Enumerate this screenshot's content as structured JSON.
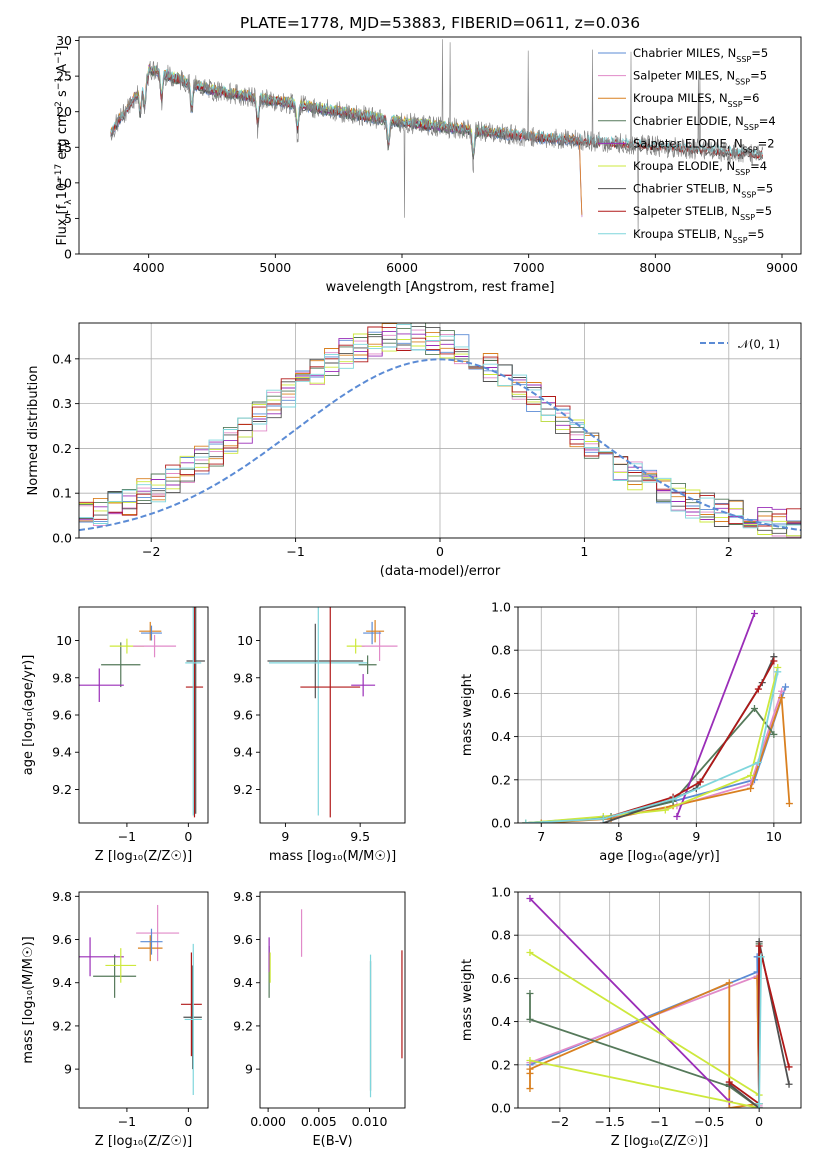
{
  "chart_data": [
    {
      "id": "spectrum",
      "type": "line",
      "title": "PLATE=1778, MJD=53883, FIBERID=0611, z=0.036",
      "xlabel": "wavelength [Angstrom, rest frame]",
      "ylabel_parts": [
        "Flux [f",
        "λ",
        "10",
        "−17",
        " erg cm",
        "−2",
        " s",
        "−1",
        " A",
        "−1",
        "]"
      ],
      "xlim": [
        3450,
        9150
      ],
      "ylim": [
        0,
        30.5
      ],
      "xticks": [
        4000,
        5000,
        6000,
        7000,
        8000,
        9000
      ],
      "yticks": [
        0,
        5,
        10,
        15,
        20,
        25,
        30
      ],
      "legend_placement": "upper right",
      "series": [
        {
          "name": "Chabrier MILES, N",
          "sub": "SSP",
          "suffix": "=5",
          "color": "#5b8bd5",
          "x_range": [
            3700,
            7420
          ]
        },
        {
          "name": "Salpeter MILES, N",
          "sub": "SSP",
          "suffix": "=5",
          "color": "#e18ac8",
          "x_range": [
            3700,
            7420
          ]
        },
        {
          "name": "Kroupa MILES, N",
          "sub": "SSP",
          "suffix": "=6",
          "color": "#d98020",
          "x_range": [
            3700,
            7420
          ]
        },
        {
          "name": "Chabrier ELODIE, N",
          "sub": "SSP",
          "suffix": "=4",
          "color": "#55795a",
          "x_range": [
            3900,
            6800
          ]
        },
        {
          "name": "Salpeter ELODIE, N",
          "sub": "SSP",
          "suffix": "=2",
          "color": "#9a2db8",
          "x_range": [
            3900,
            6800
          ]
        },
        {
          "name": "Kroupa ELODIE, N",
          "sub": "SSP",
          "suffix": "=4",
          "color": "#cde83c",
          "x_range": [
            3900,
            6800
          ]
        },
        {
          "name": "Chabrier STELIB, N",
          "sub": "SSP",
          "suffix": "=5",
          "color": "#505050",
          "x_range": [
            3700,
            8850
          ]
        },
        {
          "name": "Salpeter STELIB, N",
          "sub": "SSP",
          "suffix": "=5",
          "color": "#b01818",
          "x_range": [
            3700,
            8850
          ]
        },
        {
          "name": "Kroupa STELIB, N",
          "sub": "SSP",
          "suffix": "=5",
          "color": "#7fd6dc",
          "x_range": [
            3700,
            8850
          ]
        }
      ],
      "data_line": {
        "color": "#808080"
      }
    },
    {
      "id": "residuals",
      "type": "step",
      "xlabel": "(data-model)/error",
      "ylabel": "Normed distribution",
      "xlim": [
        -2.5,
        2.5
      ],
      "ylim": [
        0,
        0.48
      ],
      "xticks": [
        -2,
        -1,
        0,
        1,
        2
      ],
      "yticks": [
        0.0,
        0.1,
        0.2,
        0.3,
        0.4
      ],
      "grid": true,
      "legend": {
        "label": "𝒩(0, 1)",
        "color": "#5b8bd5",
        "placement": "upper right"
      },
      "bins": {
        "start": -2.5,
        "width": 0.1,
        "count": 50
      }
    },
    {
      "id": "age-vs-Z",
      "type": "errorbar",
      "xlabel": "Z [log₁₀(Z/Z☉)]",
      "ylabel": "age  [log₁₀(age/yr)]",
      "xlim": [
        -1.78,
        0.32
      ],
      "ylim": [
        9.02,
        10.18
      ],
      "xticks": [
        -1,
        0
      ],
      "yticks": [
        9.2,
        9.4,
        9.6,
        9.8,
        10.0
      ],
      "points": [
        {
          "x": -1.1,
          "y": 9.87,
          "xerr": 0.32,
          "yerr": 0.12,
          "color": "#55795a"
        },
        {
          "x": -1.45,
          "y": 9.76,
          "xerr": 0.4,
          "yerr": 0.09,
          "color": "#9a2db8"
        },
        {
          "x": -1.0,
          "y": 9.97,
          "xerr": 0.28,
          "yerr": 0.04,
          "color": "#cde83c"
        },
        {
          "x": -0.55,
          "y": 9.97,
          "xerr": 0.35,
          "yerr": 0.06,
          "color": "#e18ac8"
        },
        {
          "x": -0.62,
          "y": 10.05,
          "xerr": 0.18,
          "yerr": 0.05,
          "color": "#d98020"
        },
        {
          "x": -0.6,
          "y": 10.04,
          "xerr": 0.17,
          "yerr": 0.04,
          "color": "#5b8bd5"
        },
        {
          "x": 0.12,
          "y": 9.89,
          "xerr": 0.15,
          "yerr": 0.82,
          "color": "#505050"
        },
        {
          "x": 0.1,
          "y": 9.75,
          "xerr": 0.14,
          "yerr": 0.7,
          "color": "#b01818"
        },
        {
          "x": 0.08,
          "y": 9.88,
          "xerr": 0.13,
          "yerr": 0.82,
          "color": "#7fd6dc"
        }
      ]
    },
    {
      "id": "age-vs-mass",
      "type": "errorbar",
      "xlabel": "mass [log₁₀(M/M☉)]",
      "ylabel": "",
      "xlim": [
        8.83,
        9.8
      ],
      "ylim": [
        9.02,
        10.18
      ],
      "xticks": [
        9.0,
        9.5
      ],
      "yticks": [
        9.2,
        9.4,
        9.6,
        9.8,
        10.0
      ],
      "points": [
        {
          "x": 9.2,
          "y": 9.89,
          "xerr": 0.32,
          "yerr": 0.2,
          "color": "#505050"
        },
        {
          "x": 9.22,
          "y": 9.88,
          "xerr": 0.33,
          "yerr": 0.82,
          "color": "#7fd6dc"
        },
        {
          "x": 9.3,
          "y": 9.75,
          "xerr": 0.2,
          "yerr": 0.7,
          "color": "#b01818"
        },
        {
          "x": 9.52,
          "y": 9.76,
          "xerr": 0.08,
          "yerr": 0.06,
          "color": "#9a2db8"
        },
        {
          "x": 9.47,
          "y": 9.97,
          "xerr": 0.06,
          "yerr": 0.04,
          "color": "#cde83c"
        },
        {
          "x": 9.63,
          "y": 9.97,
          "xerr": 0.12,
          "yerr": 0.08,
          "color": "#e18ac8"
        },
        {
          "x": 9.58,
          "y": 10.04,
          "xerr": 0.06,
          "yerr": 0.06,
          "color": "#5b8bd5"
        },
        {
          "x": 9.6,
          "y": 10.05,
          "xerr": 0.06,
          "yerr": 0.06,
          "color": "#d98020"
        },
        {
          "x": 9.55,
          "y": 9.87,
          "xerr": 0.06,
          "yerr": 0.05,
          "color": "#55795a"
        }
      ]
    },
    {
      "id": "mass-weight-vs-age",
      "type": "line",
      "xlabel": "age  [log₁₀(age/yr)]",
      "ylabel": "mass weight",
      "xlim": [
        6.7,
        10.35
      ],
      "ylim": [
        0,
        1.0
      ],
      "xticks": [
        7,
        8,
        9,
        10
      ],
      "yticks": [
        0.0,
        0.2,
        0.4,
        0.6,
        0.8,
        1.0
      ],
      "grid": true,
      "series": [
        {
          "color": "#5b8bd5",
          "x": [
            6.8,
            7.8,
            8.7,
            9.75,
            10.15
          ],
          "y": [
            0.0,
            0.02,
            0.1,
            0.2,
            0.63
          ]
        },
        {
          "color": "#e18ac8",
          "x": [
            6.8,
            7.8,
            8.75,
            9.7,
            10.1
          ],
          "y": [
            0.0,
            0.02,
            0.08,
            0.18,
            0.61
          ]
        },
        {
          "color": "#d98020",
          "x": [
            7.0,
            7.9,
            8.7,
            9.7,
            10.1,
            10.2
          ],
          "y": [
            0.0,
            0.02,
            0.08,
            0.16,
            0.58,
            0.09
          ]
        },
        {
          "color": "#55795a",
          "x": [
            6.8,
            7.9,
            8.7,
            9.75,
            10.0
          ],
          "y": [
            0.0,
            0.03,
            0.1,
            0.53,
            0.41
          ]
        },
        {
          "color": "#9a2db8",
          "x": [
            8.75,
            9.75
          ],
          "y": [
            0.03,
            0.97
          ]
        },
        {
          "color": "#cde83c",
          "x": [
            6.8,
            7.8,
            8.6,
            9.7,
            10.05
          ],
          "y": [
            0.0,
            0.03,
            0.06,
            0.22,
            0.72
          ]
        },
        {
          "color": "#505050",
          "x": [
            7.8,
            8.7,
            9.0,
            9.85,
            10.0
          ],
          "y": [
            0.0,
            0.11,
            0.16,
            0.65,
            0.77
          ]
        },
        {
          "color": "#b01818",
          "x": [
            7.8,
            8.7,
            9.05,
            9.8,
            10.0
          ],
          "y": [
            0.02,
            0.12,
            0.19,
            0.62,
            0.75
          ]
        },
        {
          "color": "#7fd6dc",
          "x": [
            6.8,
            7.8,
            8.7,
            9.8,
            10.05
          ],
          "y": [
            0.0,
            0.02,
            0.11,
            0.28,
            0.7
          ]
        }
      ]
    },
    {
      "id": "mass-vs-Z",
      "type": "errorbar",
      "xlabel": "Z [log₁₀(Z/Z☉)]",
      "ylabel": "mass [log₁₀(M/M☉)]",
      "xlim": [
        -1.78,
        0.32
      ],
      "ylim": [
        8.82,
        9.82
      ],
      "xticks": [
        -1,
        0
      ],
      "yticks": [
        9.0,
        9.2,
        9.4,
        9.6,
        9.8
      ],
      "points": [
        {
          "x": -1.2,
          "y": 9.43,
          "xerr": 0.35,
          "yerr": 0.1,
          "color": "#55795a"
        },
        {
          "x": -1.6,
          "y": 9.52,
          "xerr": 0.55,
          "yerr": 0.09,
          "color": "#9a2db8"
        },
        {
          "x": -1.1,
          "y": 9.48,
          "xerr": 0.25,
          "yerr": 0.08,
          "color": "#cde83c"
        },
        {
          "x": -0.5,
          "y": 9.63,
          "xerr": 0.35,
          "yerr": 0.13,
          "color": "#e18ac8"
        },
        {
          "x": -0.62,
          "y": 9.56,
          "xerr": 0.2,
          "yerr": 0.06,
          "color": "#d98020"
        },
        {
          "x": -0.6,
          "y": 9.59,
          "xerr": 0.18,
          "yerr": 0.06,
          "color": "#5b8bd5"
        },
        {
          "x": 0.05,
          "y": 9.3,
          "xerr": 0.17,
          "yerr": 0.24,
          "color": "#b01818"
        },
        {
          "x": 0.07,
          "y": 9.24,
          "xerr": 0.15,
          "yerr": 0.24,
          "color": "#505050"
        },
        {
          "x": 0.08,
          "y": 9.23,
          "xerr": 0.14,
          "yerr": 0.35,
          "color": "#7fd6dc"
        }
      ]
    },
    {
      "id": "mass-vs-ebv",
      "type": "errorbar",
      "xlabel": "E(B-V)",
      "ylabel": "",
      "xlim": [
        -0.0008,
        0.0135
      ],
      "ylim": [
        8.82,
        9.82
      ],
      "xticks": [
        0.0,
        0.005,
        0.01
      ],
      "xticklabels": [
        "0.000",
        "0.005",
        "0.010"
      ],
      "yticks": [
        9.0,
        9.2,
        9.4,
        9.6,
        9.8
      ],
      "points": [
        {
          "x": 0.0001,
          "y": 9.45,
          "xerr": 0,
          "yerr": 0.12,
          "color": "#55795a"
        },
        {
          "x": 0.0001,
          "y": 9.53,
          "xerr": 0,
          "yerr": 0.08,
          "color": "#9a2db8"
        },
        {
          "x": 0.0002,
          "y": 9.47,
          "xerr": 0,
          "yerr": 0.07,
          "color": "#cde83c"
        },
        {
          "x": 0.0033,
          "y": 9.63,
          "xerr": 0,
          "yerr": 0.11,
          "color": "#e18ac8"
        },
        {
          "x": 0.0101,
          "y": 9.2,
          "xerr": 0,
          "yerr": 0.3,
          "color": "#505050"
        },
        {
          "x": 0.0101,
          "y": 9.2,
          "xerr": 0,
          "yerr": 0.33,
          "color": "#7fd6dc"
        },
        {
          "x": 0.0132,
          "y": 9.3,
          "xerr": 0,
          "yerr": 0.25,
          "color": "#b01818"
        }
      ]
    },
    {
      "id": "mass-weight-vs-Z",
      "type": "line",
      "xlabel": "Z [log₁₀(Z/Z☉)]",
      "ylabel": "mass weight",
      "xlim": [
        -2.42,
        0.42
      ],
      "ylim": [
        0,
        1.0
      ],
      "xticks": [
        -2.0,
        -1.5,
        -1.0,
        -0.5,
        0.0
      ],
      "yticks": [
        0.0,
        0.2,
        0.4,
        0.6,
        0.8,
        1.0
      ],
      "grid": true,
      "series": [
        {
          "color": "#5b8bd5",
          "x": [
            -2.3,
            -0.02,
            0.0,
            -0.02
          ],
          "y": [
            0.2,
            0.63,
            0.0,
            0.7
          ]
        },
        {
          "color": "#e18ac8",
          "x": [
            -2.3,
            -0.02,
            0.0
          ],
          "y": [
            0.21,
            0.61,
            0.01
          ]
        },
        {
          "color": "#d98020",
          "x": [
            -2.3,
            -2.3,
            -2.3,
            -0.3,
            -0.3,
            0.0,
            -0.02
          ],
          "y": [
            0.09,
            0.16,
            0.18,
            0.58,
            0.0,
            0.02,
            0.6
          ]
        },
        {
          "color": "#55795a",
          "x": [
            -2.3,
            -2.3,
            -0.3,
            0.0,
            0.0
          ],
          "y": [
            0.53,
            0.41,
            0.1,
            0.0,
            0.76
          ]
        },
        {
          "color": "#9a2db8",
          "x": [
            -2.3,
            -0.3
          ],
          "y": [
            0.97,
            0.03
          ]
        },
        {
          "color": "#cde83c",
          "x": [
            -2.3,
            0.0,
            0.0,
            -2.3
          ],
          "y": [
            0.72,
            0.06,
            0.0,
            0.22
          ]
        },
        {
          "color": "#505050",
          "x": [
            -0.3,
            0.0,
            0.0,
            0.3
          ],
          "y": [
            0.11,
            0.0,
            0.77,
            0.11
          ]
        },
        {
          "color": "#b01818",
          "x": [
            -0.3,
            0.0,
            0.0,
            0.3
          ],
          "y": [
            0.12,
            0.02,
            0.75,
            0.19
          ]
        },
        {
          "color": "#7fd6dc",
          "x": [
            0.0,
            0.02,
            0.0
          ],
          "y": [
            0.02,
            0.7,
            0.0
          ]
        }
      ]
    }
  ]
}
